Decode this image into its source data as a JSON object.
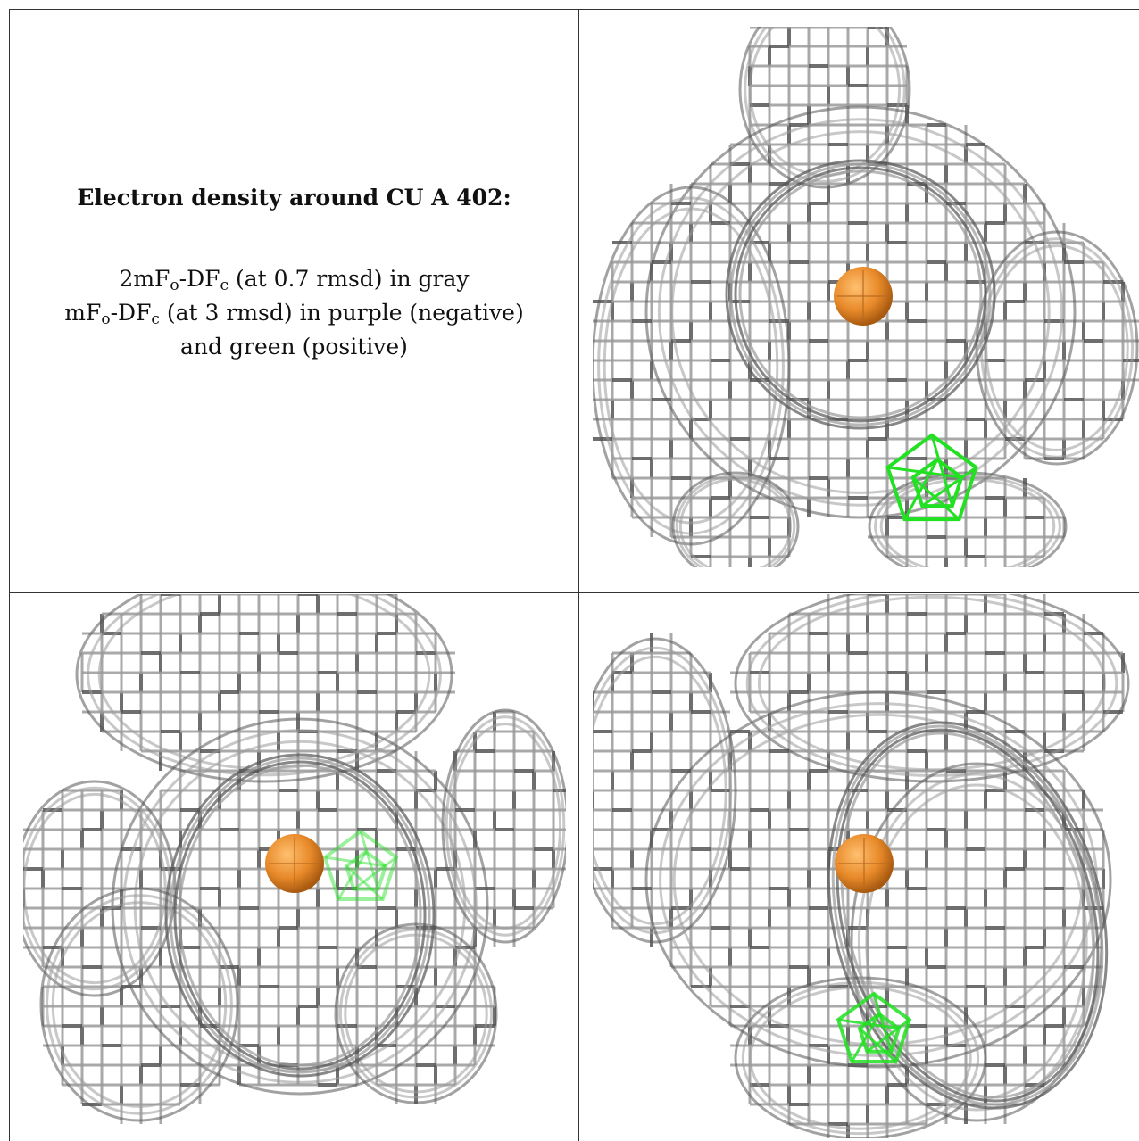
{
  "title": "Electron density around CU A 402:",
  "legend": {
    "line1": {
      "prefix": "2mF",
      "sub1": "o",
      "mid": "-DF",
      "sub2": "c",
      "suffix": " (at 0.7 rmsd) in gray"
    },
    "line2": {
      "prefix": "mF",
      "sub1": "o",
      "mid": "-DF",
      "sub2": "c",
      "suffix": " (at 3 rmsd) in purple (negative)"
    },
    "line3": "and green (positive)"
  },
  "colors": {
    "mesh_2fofc": "#9a9a9a",
    "mesh_dark": "#555555",
    "positive": "#22e022",
    "negative": "#c070e0",
    "atom": "#e88a2a"
  },
  "panels": [
    {
      "view": "view-1",
      "atom": "CU A 402"
    },
    {
      "view": "view-2",
      "atom": "CU A 402"
    },
    {
      "view": "view-3",
      "atom": "CU A 402"
    }
  ]
}
